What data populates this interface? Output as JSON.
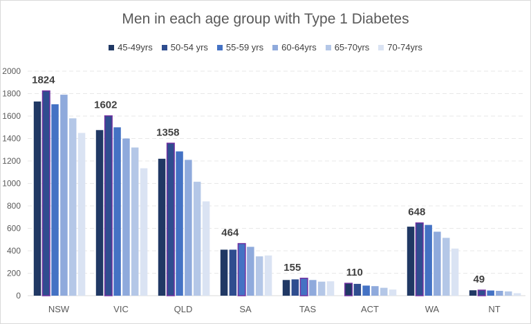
{
  "chart_data": {
    "type": "bar",
    "title": "Men in each age group with Type 1 Diabetes",
    "xlabel": "",
    "ylabel": "",
    "ylim": [
      0,
      2000
    ],
    "yticks": [
      0,
      200,
      400,
      600,
      800,
      1000,
      1200,
      1400,
      1600,
      1800,
      2000
    ],
    "grid": true,
    "legend_position": "top",
    "categories": [
      "NSW",
      "VIC",
      "QLD",
      "SA",
      "TAS",
      "ACT",
      "WA",
      "NT"
    ],
    "series": [
      {
        "name": "45-49yrs",
        "color": "#203864",
        "values": [
          1730,
          1475,
          1220,
          410,
          140,
          110,
          615,
          48
        ]
      },
      {
        "name": "50-54 yrs",
        "color": "#2F4D8F",
        "values": [
          1824,
          1602,
          1358,
          410,
          145,
          105,
          648,
          49
        ]
      },
      {
        "name": "55-59 yrs",
        "color": "#4472C4",
        "values": [
          1705,
          1500,
          1285,
          464,
          155,
          90,
          630,
          46
        ]
      },
      {
        "name": "60-64yrs",
        "color": "#8FAADC",
        "values": [
          1790,
          1400,
          1210,
          435,
          140,
          85,
          570,
          43
        ]
      },
      {
        "name": "65-70yrs",
        "color": "#B4C7E7",
        "values": [
          1580,
          1320,
          1015,
          350,
          125,
          70,
          515,
          38
        ]
      },
      {
        "name": "70-74yrs",
        "color": "#DAE3F3",
        "values": [
          1450,
          1135,
          840,
          358,
          128,
          55,
          420,
          22
        ]
      }
    ],
    "annotations": [
      {
        "category": "NSW",
        "text": "1824"
      },
      {
        "category": "VIC",
        "text": "1602"
      },
      {
        "category": "QLD",
        "text": "1358"
      },
      {
        "category": "SA",
        "text": "464"
      },
      {
        "category": "TAS",
        "text": "155"
      },
      {
        "category": "ACT",
        "text": "110"
      },
      {
        "category": "WA",
        "text": "648"
      },
      {
        "category": "NT",
        "text": "49"
      }
    ],
    "highlighted_bars": [
      {
        "category": "NSW",
        "series": "50-54 yrs"
      },
      {
        "category": "VIC",
        "series": "50-54 yrs"
      },
      {
        "category": "QLD",
        "series": "50-54 yrs"
      },
      {
        "category": "SA",
        "series": "55-59 yrs"
      },
      {
        "category": "TAS",
        "series": "55-59 yrs"
      },
      {
        "category": "ACT",
        "series": "45-49yrs"
      },
      {
        "category": "WA",
        "series": "50-54 yrs"
      },
      {
        "category": "NT",
        "series": "50-54 yrs"
      }
    ],
    "highlight_color": "#7030A0"
  }
}
